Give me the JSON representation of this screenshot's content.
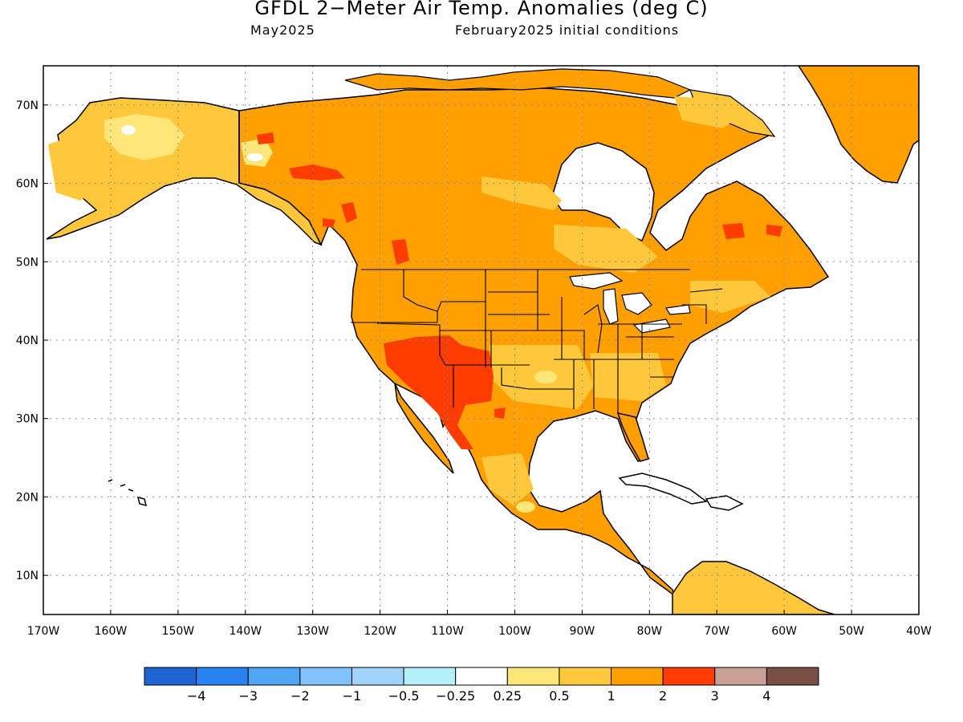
{
  "title": "GFDL 2−Meter Air Temp. Anomalies (deg C)",
  "subtitle_left": "May2025",
  "subtitle_right": "February2025 initial conditions",
  "map": {
    "lon_range": [
      -170,
      -40
    ],
    "lat_range": [
      5,
      75
    ],
    "lat_labels": [
      "70N",
      "60N",
      "50N",
      "40N",
      "30N",
      "20N",
      "10N"
    ],
    "lon_labels": [
      "170W",
      "160W",
      "150W",
      "140W",
      "130W",
      "120W",
      "110W",
      "100W",
      "90W",
      "80W",
      "70W",
      "60W",
      "50W",
      "40W"
    ],
    "grid": "dotted",
    "ocean_color": "#ffffff",
    "dominant_land_anomaly": "1 to 2 deg C (orange)",
    "warmest_region": "US Southwest and northern Mexico (2 to 3 deg C, red)"
  },
  "colorbar": {
    "colors": [
      "#1e64d2",
      "#2882f0",
      "#50a5f5",
      "#82c3ff",
      "#a0d2fa",
      "#b4f0fa",
      "#ffffff",
      "#ffe678",
      "#ffc83c",
      "#ffa000",
      "#ff3c00",
      "#c8a096",
      "#785046"
    ],
    "labels": [
      "−4",
      "−3",
      "−2",
      "−1",
      "−0.5",
      "−0.25",
      "0.25",
      "0.5",
      "1",
      "2",
      "3",
      "4"
    ]
  }
}
